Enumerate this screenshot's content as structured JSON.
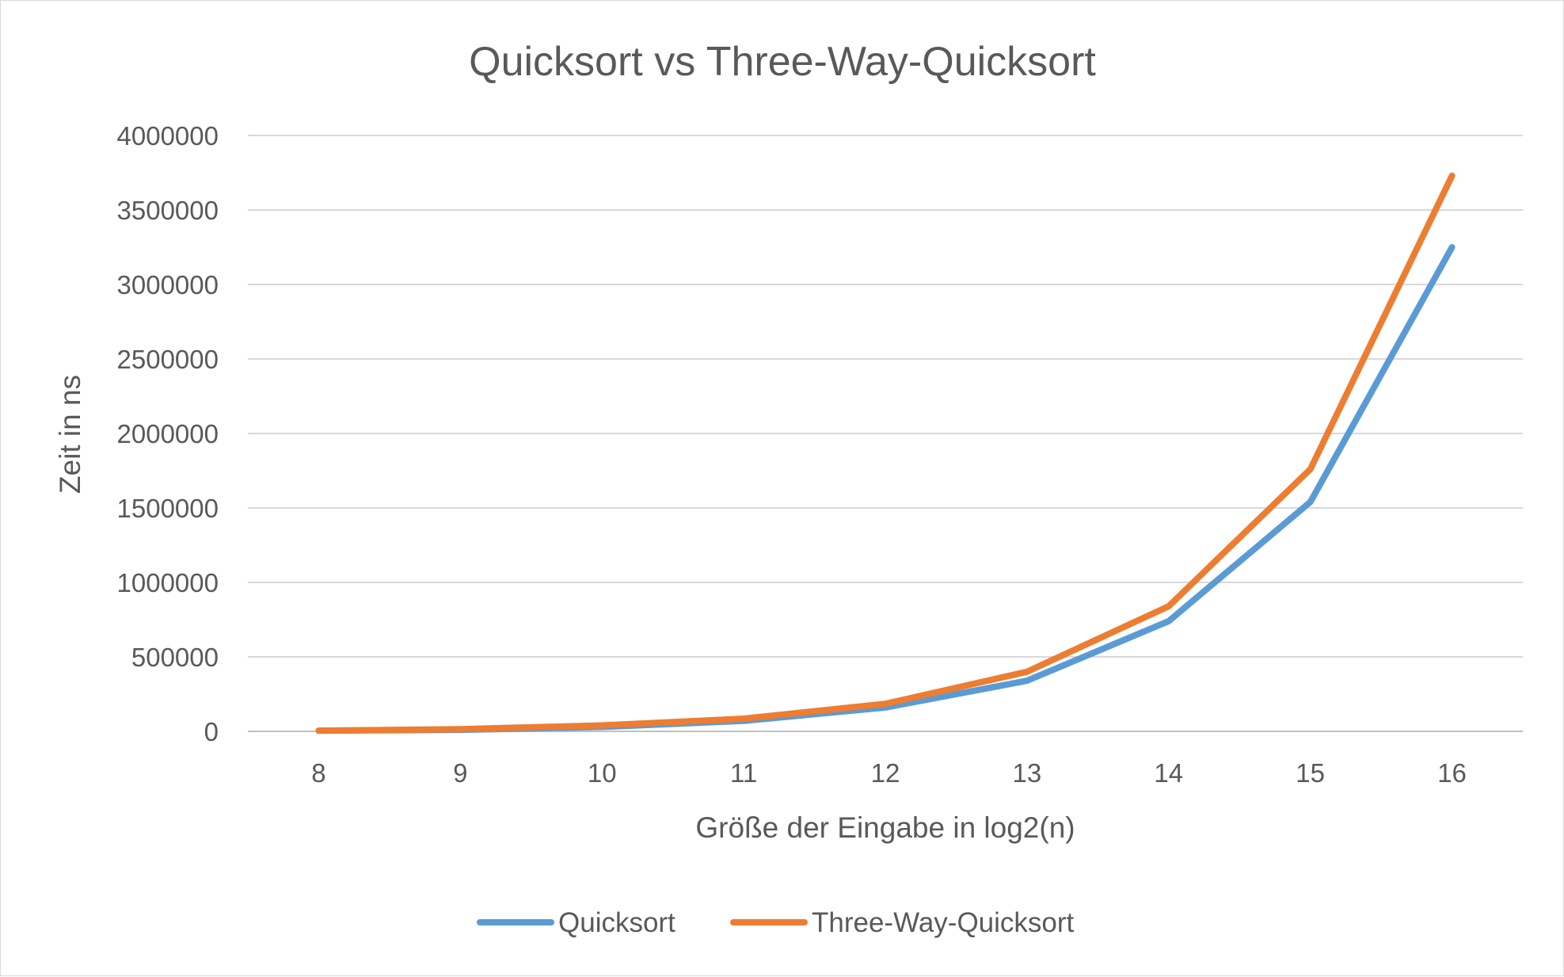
{
  "chart_data": {
    "type": "line",
    "title": "Quicksort vs Three-Way-Quicksort",
    "xlabel": "Größe der Eingabe in log2(n)",
    "ylabel": "Zeit in ns",
    "categories": [
      "8",
      "9",
      "10",
      "11",
      "12",
      "13",
      "14",
      "15",
      "16"
    ],
    "ylim": [
      0,
      4000000
    ],
    "yticks": [
      "0",
      "500000",
      "1000000",
      "1500000",
      "2000000",
      "2500000",
      "3000000",
      "3500000",
      "4000000"
    ],
    "grid": true,
    "legend_position": "bottom",
    "series": [
      {
        "name": "Quicksort",
        "color": "#5b9bd5",
        "values": [
          5000,
          10000,
          30000,
          70000,
          160000,
          340000,
          740000,
          1540000,
          3250000
        ]
      },
      {
        "name": "Three-Way-Quicksort",
        "color": "#ed7d31",
        "values": [
          5000,
          15000,
          40000,
          85000,
          185000,
          400000,
          840000,
          1760000,
          3730000
        ]
      }
    ]
  }
}
